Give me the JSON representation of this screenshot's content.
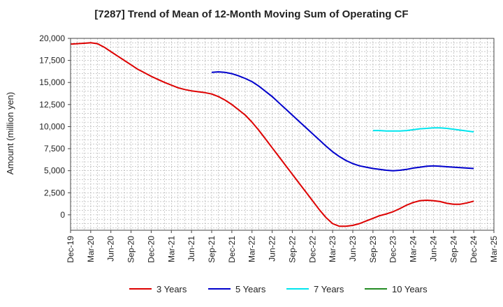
{
  "chart_data": {
    "type": "line",
    "title": "[7287]  Trend of Mean of 12-Month Moving Sum of Operating CF",
    "xlabel": "",
    "ylabel": "Amount (million yen)",
    "ylim": [
      -1750,
      20000
    ],
    "yticks": [
      0,
      2500,
      5000,
      7500,
      10000,
      12500,
      15000,
      17500,
      20000
    ],
    "ytick_labels": [
      "0",
      "2,500",
      "5,000",
      "7,500",
      "10,000",
      "12,500",
      "15,000",
      "17,500",
      "20,000"
    ],
    "x_tick_labels": [
      "Dec-19",
      "Mar-20",
      "Jun-20",
      "Sep-20",
      "Dec-20",
      "Mar-21",
      "Jun-21",
      "Sep-21",
      "Dec-21",
      "Mar-22",
      "Jun-22",
      "Sep-22",
      "Dec-22",
      "Mar-23",
      "Jun-23",
      "Sep-23",
      "Dec-23",
      "Mar-24",
      "Jun-24",
      "Sep-24",
      "Dec-24",
      "Mar-25"
    ],
    "x_unit": "months since Dec-19",
    "xlim": [
      0,
      63
    ],
    "grid": true,
    "legend_position": "bottom",
    "series": [
      {
        "name": "3 Years",
        "color": "#dd0000",
        "x": [
          0,
          1,
          2,
          3,
          4,
          5,
          6,
          7,
          8,
          9,
          10,
          11,
          12,
          13,
          14,
          15,
          16,
          17,
          18,
          19,
          20,
          21,
          22,
          23,
          24,
          25,
          26,
          27,
          28,
          29,
          30,
          31,
          32,
          33,
          34,
          35,
          36,
          37,
          38,
          39,
          40,
          41,
          42,
          43,
          44,
          45,
          46,
          47,
          48,
          49,
          50,
          51,
          52,
          53,
          54,
          55,
          56,
          57,
          58,
          59,
          60
        ],
        "values": [
          19350,
          19400,
          19450,
          19500,
          19400,
          19000,
          18500,
          18000,
          17500,
          17000,
          16500,
          16100,
          15700,
          15350,
          15000,
          14700,
          14400,
          14200,
          14050,
          13950,
          13850,
          13700,
          13400,
          13000,
          12500,
          11900,
          11300,
          10500,
          9600,
          8600,
          7600,
          6600,
          5600,
          4600,
          3600,
          2600,
          1600,
          600,
          -300,
          -1000,
          -1300,
          -1300,
          -1200,
          -1000,
          -700,
          -400,
          -100,
          100,
          350,
          700,
          1100,
          1400,
          1600,
          1650,
          1600,
          1500,
          1300,
          1200,
          1200,
          1350,
          1550
        ]
      },
      {
        "name": "5 Years",
        "color": "#0000cc",
        "x": [
          21,
          22,
          23,
          24,
          25,
          26,
          27,
          28,
          29,
          30,
          31,
          32,
          33,
          34,
          35,
          36,
          37,
          38,
          39,
          40,
          41,
          42,
          43,
          44,
          45,
          46,
          47,
          48,
          49,
          50,
          51,
          52,
          53,
          54,
          55,
          56,
          57,
          58,
          59,
          60
        ],
        "values": [
          16150,
          16200,
          16150,
          16000,
          15750,
          15450,
          15100,
          14600,
          14000,
          13400,
          12700,
          12000,
          11300,
          10600,
          9900,
          9200,
          8500,
          7800,
          7150,
          6600,
          6150,
          5800,
          5550,
          5400,
          5250,
          5150,
          5050,
          5000,
          5050,
          5150,
          5300,
          5400,
          5500,
          5550,
          5500,
          5450,
          5400,
          5350,
          5300,
          5250
        ]
      },
      {
        "name": "7 Years",
        "color": "#00e5ee",
        "x": [
          45,
          46,
          47,
          48,
          49,
          50,
          51,
          52,
          53,
          54,
          55,
          56,
          57,
          58,
          59,
          60
        ],
        "values": [
          9550,
          9550,
          9500,
          9500,
          9500,
          9550,
          9650,
          9750,
          9800,
          9850,
          9850,
          9800,
          9700,
          9600,
          9500,
          9400
        ]
      },
      {
        "name": "10 Years",
        "color": "#228b22",
        "x": [],
        "values": []
      }
    ]
  }
}
